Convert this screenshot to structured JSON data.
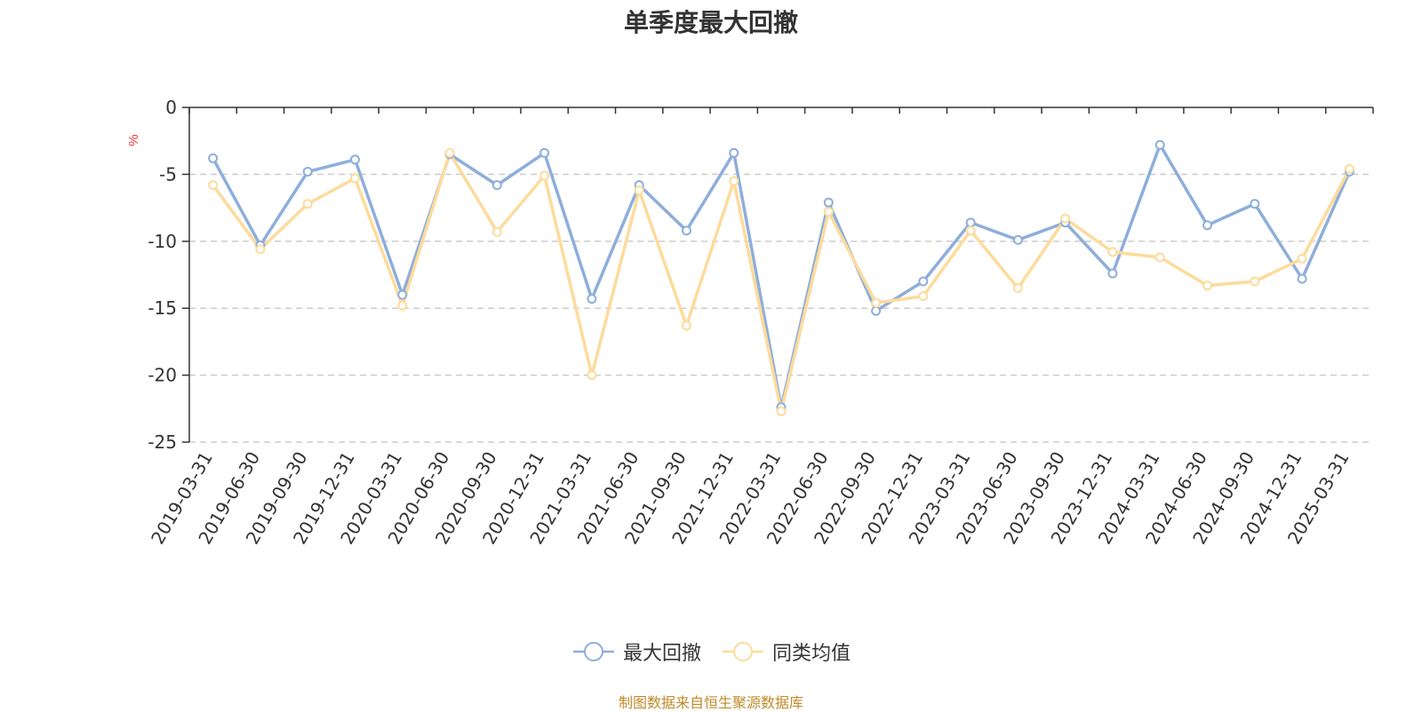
{
  "chart_data": {
    "type": "line",
    "title": "单季度最大回撤",
    "ylabel": "%",
    "ylim": [
      -25,
      0
    ],
    "yticks": [
      0,
      -5,
      -10,
      -15,
      -20,
      -25
    ],
    "ytick_labels": [
      "0",
      "-5",
      "-10",
      "-15",
      "-20",
      "-25"
    ],
    "grid": true,
    "legend_position": "bottom",
    "categories": [
      "2019-03-31",
      "2019-06-30",
      "2019-09-30",
      "2019-12-31",
      "2020-03-31",
      "2020-06-30",
      "2020-09-30",
      "2020-12-31",
      "2021-03-31",
      "2021-06-30",
      "2021-09-30",
      "2021-12-31",
      "2022-03-31",
      "2022-06-30",
      "2022-09-30",
      "2022-12-31",
      "2023-03-31",
      "2023-06-30",
      "2023-09-30",
      "2023-12-31",
      "2024-03-31",
      "2024-06-30",
      "2024-09-30",
      "2024-12-31",
      "2025-03-31"
    ],
    "series": [
      {
        "name": "最大回撤",
        "color": "#8eaedb",
        "values": [
          -3.8,
          -10.3,
          -4.8,
          -3.9,
          -14.0,
          -3.5,
          -5.8,
          -3.4,
          -14.3,
          -5.8,
          -9.2,
          -3.4,
          -22.4,
          -7.1,
          -15.2,
          -13.0,
          -8.6,
          -9.9,
          -8.6,
          -12.4,
          -2.8,
          -8.8,
          -7.2,
          -12.8,
          -4.8
        ]
      },
      {
        "name": "同类均值",
        "color": "#fddb9c",
        "values": [
          -5.8,
          -10.6,
          -7.2,
          -5.3,
          -14.8,
          -3.4,
          -9.3,
          -5.1,
          -20.0,
          -6.2,
          -16.3,
          -5.5,
          -22.7,
          -7.8,
          -14.6,
          -14.1,
          -9.2,
          -13.5,
          -8.3,
          -10.8,
          -11.2,
          -13.3,
          -13.0,
          -11.3,
          -4.6
        ]
      }
    ]
  },
  "footer": {
    "source": "制图数据来自恒生聚源数据库"
  }
}
